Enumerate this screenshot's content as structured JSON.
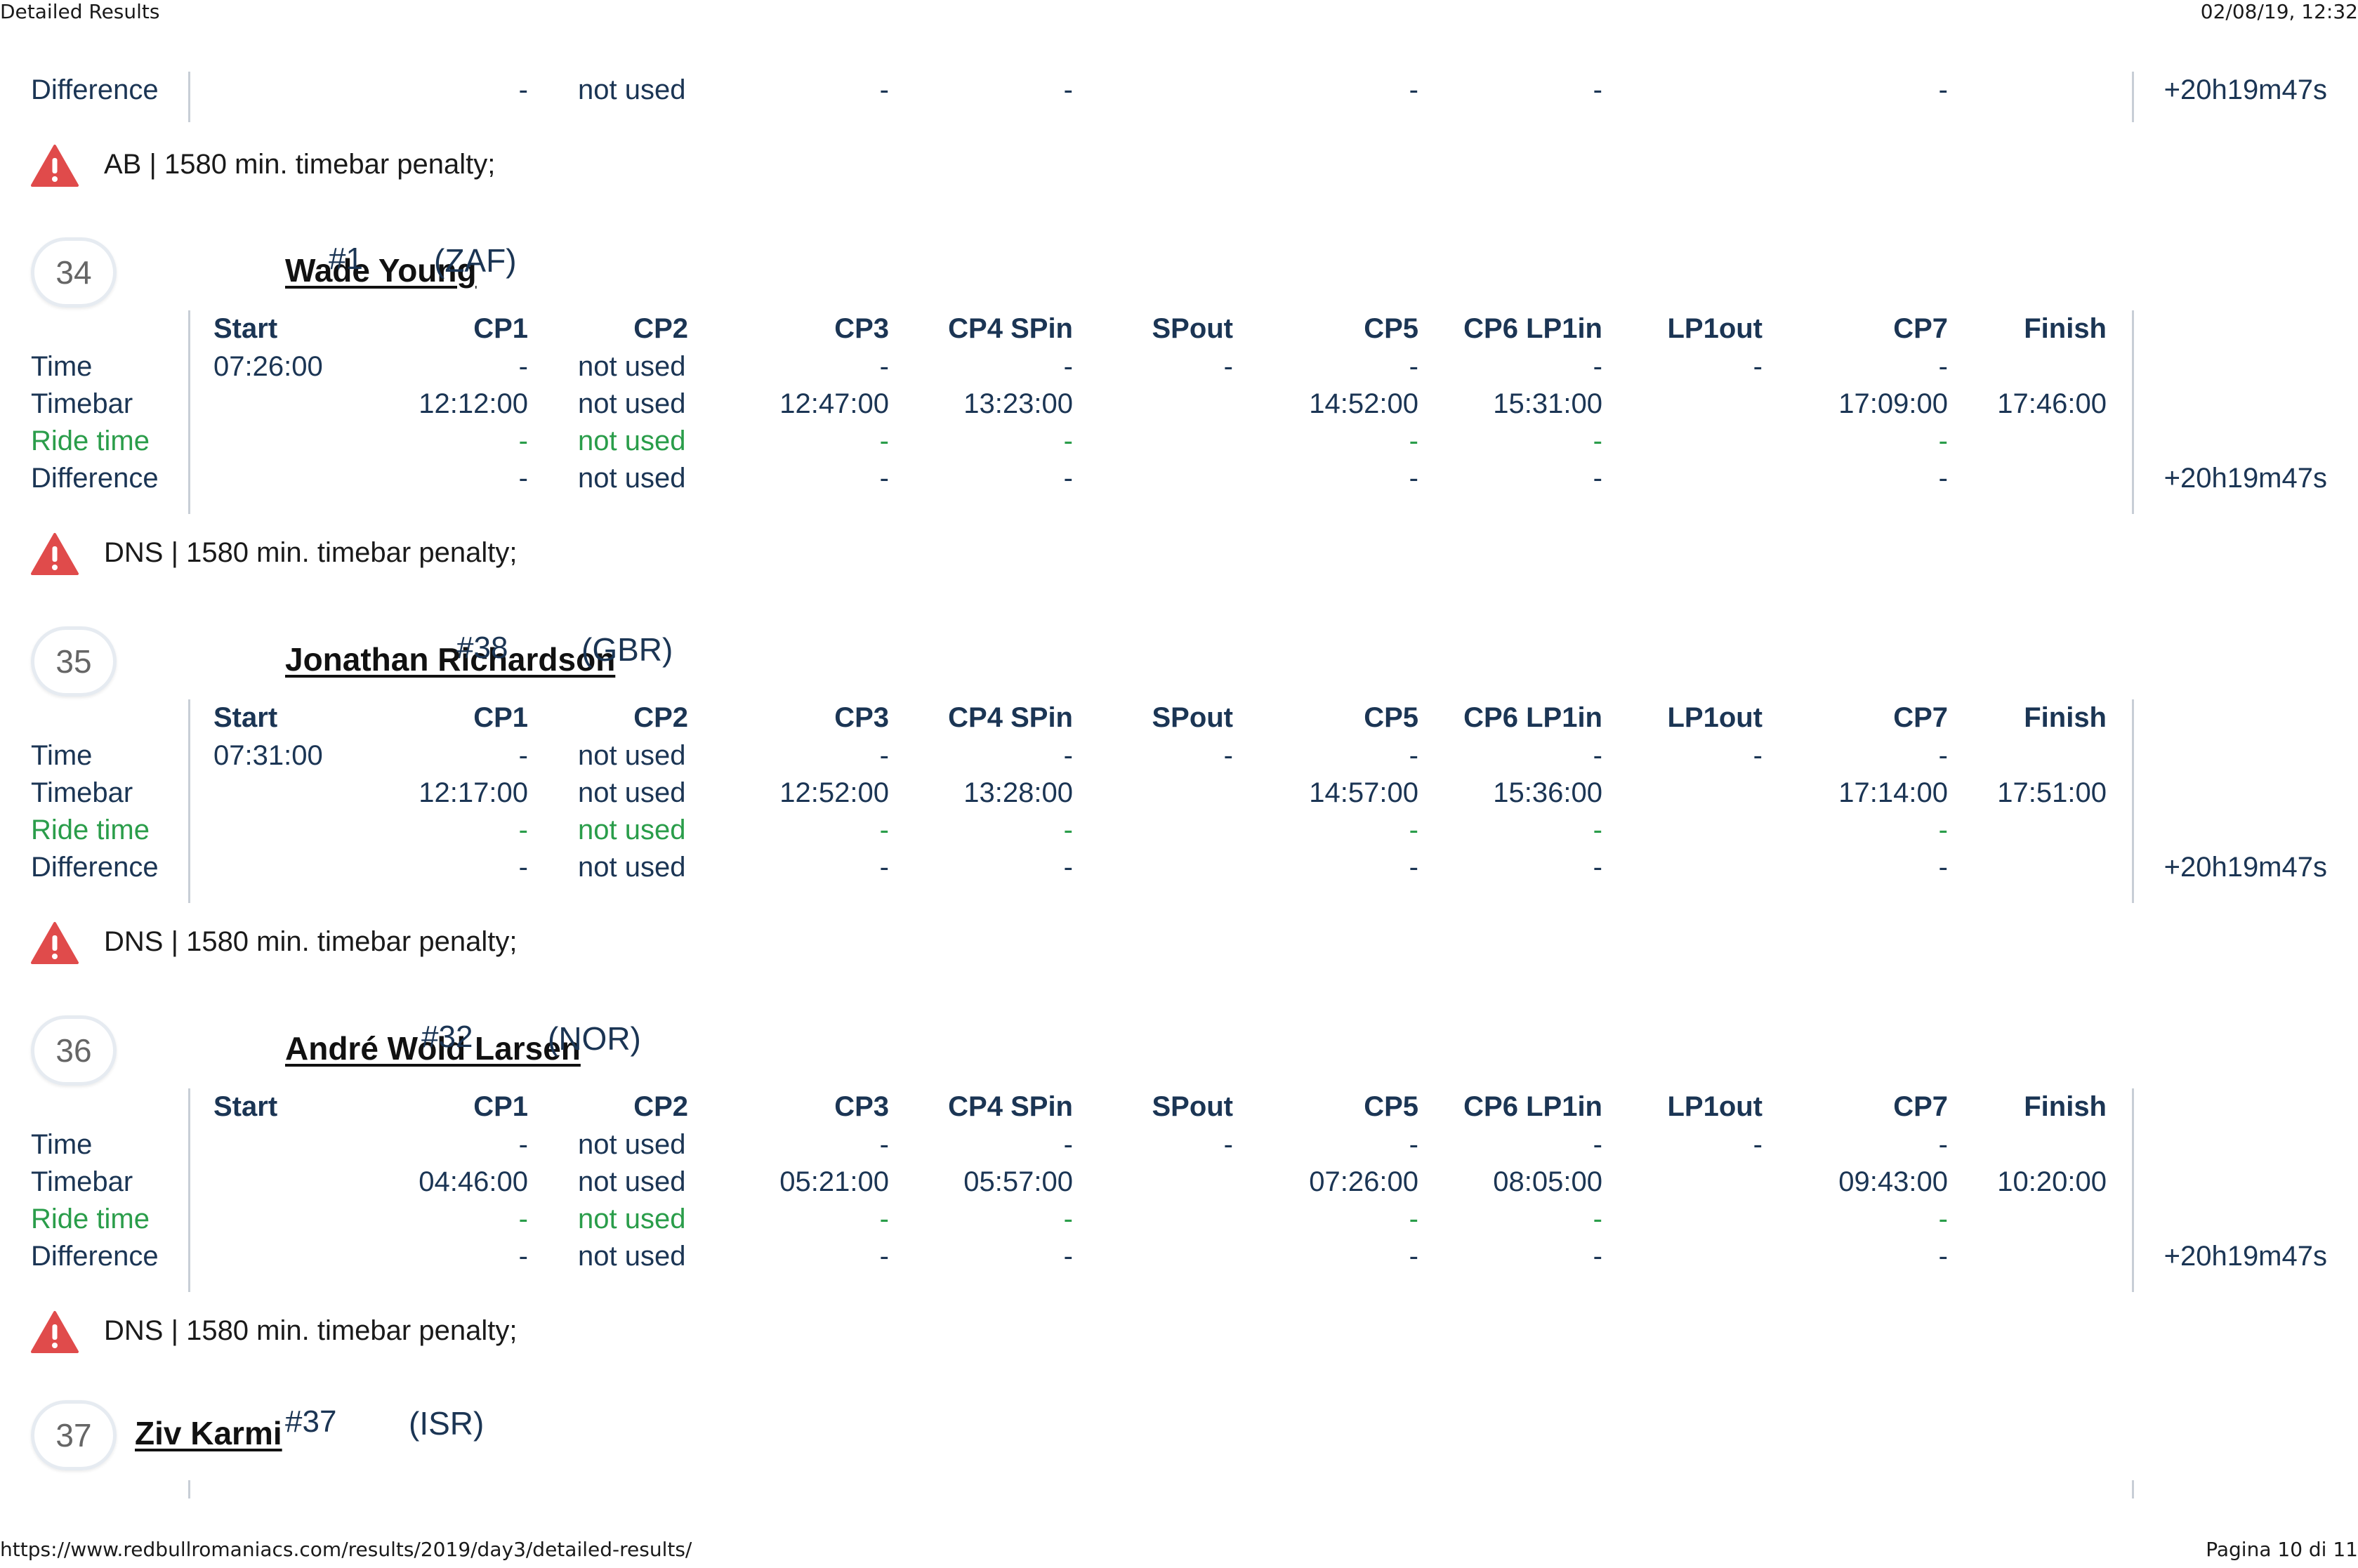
{
  "header": {
    "title": "Detailed Results",
    "datetime": "02/08/19, 12:32"
  },
  "footer": {
    "url": "https://www.redbullromaniacs.com/results/2019/day3/detailed-results/",
    "page": "Pagina 10 di 11"
  },
  "row_labels": {
    "time": "Time",
    "timebar": "Timebar",
    "ride": "Ride time",
    "diff": "Difference"
  },
  "columns": [
    "Start",
    "CP1",
    "CP2",
    "CP3",
    "CP4 SPin",
    "SPout",
    "CP5",
    "CP6 LP1in",
    "LP1out",
    "CP7",
    "Finish"
  ],
  "top_block": {
    "label": "Difference",
    "values": [
      "-",
      "not used",
      "-",
      "-",
      "-",
      "-",
      "-"
    ],
    "total": "+20h19m47s",
    "warning": "AB | 1580 min. timebar penalty;"
  },
  "riders": [
    {
      "rank": "34",
      "name": "Wade Young",
      "number": "#1",
      "nation": "(ZAF)",
      "time": [
        "07:26:00",
        "-",
        "not used",
        "-",
        "-",
        "-",
        "-",
        "-",
        "-",
        "-"
      ],
      "timebar": [
        "12:12:00",
        "not used",
        "12:47:00",
        "13:23:00",
        "14:52:00",
        "15:31:00",
        "17:09:00",
        "17:46:00"
      ],
      "ride": [
        "-",
        "not used",
        "-",
        "-",
        "-",
        "-",
        "-"
      ],
      "diff": [
        "-",
        "not used",
        "-",
        "-",
        "-",
        "-",
        "-"
      ],
      "total": "+20h19m47s",
      "warning": "DNS | 1580 min. timebar penalty;"
    },
    {
      "rank": "35",
      "name": "Jonathan Richardson",
      "number": "#38",
      "nation": "(GBR)",
      "time": [
        "07:31:00",
        "-",
        "not used",
        "-",
        "-",
        "-",
        "-",
        "-",
        "-",
        "-"
      ],
      "timebar": [
        "12:17:00",
        "not used",
        "12:52:00",
        "13:28:00",
        "14:57:00",
        "15:36:00",
        "17:14:00",
        "17:51:00"
      ],
      "ride": [
        "-",
        "not used",
        "-",
        "-",
        "-",
        "-",
        "-"
      ],
      "diff": [
        "-",
        "not used",
        "-",
        "-",
        "-",
        "-",
        "-"
      ],
      "total": "+20h19m47s",
      "warning": "DNS | 1580 min. timebar penalty;"
    },
    {
      "rank": "36",
      "name": "André Wold Larsen",
      "number": "#32",
      "nation": "(NOR)",
      "time": [
        "",
        "-",
        "not used",
        "-",
        "-",
        "-",
        "-",
        "-",
        "-",
        "-"
      ],
      "timebar": [
        "04:46:00",
        "not used",
        "05:21:00",
        "05:57:00",
        "07:26:00",
        "08:05:00",
        "09:43:00",
        "10:20:00"
      ],
      "ride": [
        "-",
        "not used",
        "-",
        "-",
        "-",
        "-",
        "-"
      ],
      "diff": [
        "-",
        "not used",
        "-",
        "-",
        "-",
        "-",
        "-"
      ],
      "total": "+20h19m47s",
      "warning": "DNS | 1580 min. timebar penalty;"
    }
  ],
  "last_rider": {
    "rank": "37",
    "name": "Ziv Karmi",
    "number": "#37",
    "nation": "(ISR)"
  }
}
